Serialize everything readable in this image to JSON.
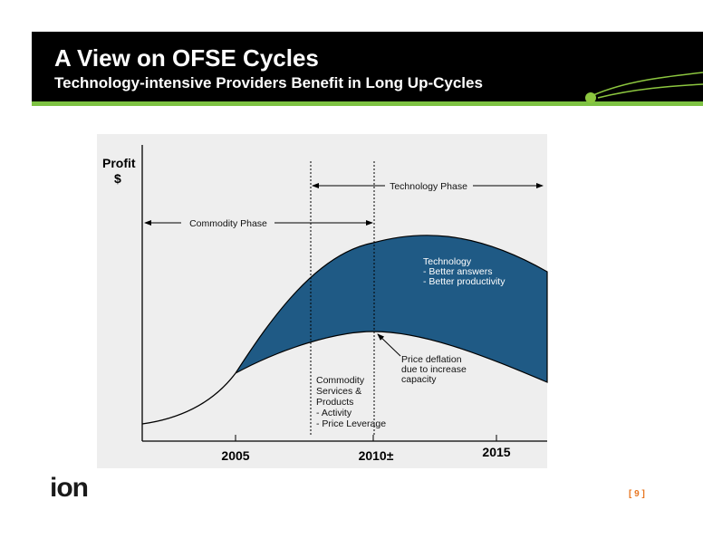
{
  "header": {
    "title": "A View on OFSE Cycles",
    "subtitle": "Technology-intensive Providers Benefit in Long Up-Cycles"
  },
  "diagram": {
    "y_label": [
      "Profit",
      "$"
    ],
    "x_labels": [
      "2005",
      "2010±",
      "2015"
    ],
    "phases": [
      "Commodity Phase",
      "Technology Phase"
    ],
    "technology_note": [
      "Technology",
      "- Better answers",
      "- Better productivity"
    ],
    "deflation_note": [
      "Price deflation",
      "due to increase",
      "capacity"
    ],
    "commodity_note": [
      "Commodity",
      "Services &",
      "Products",
      "- Activity",
      "- Price Leverage"
    ]
  },
  "footer": {
    "logo": "ion",
    "page": "[ 9 ]"
  }
}
